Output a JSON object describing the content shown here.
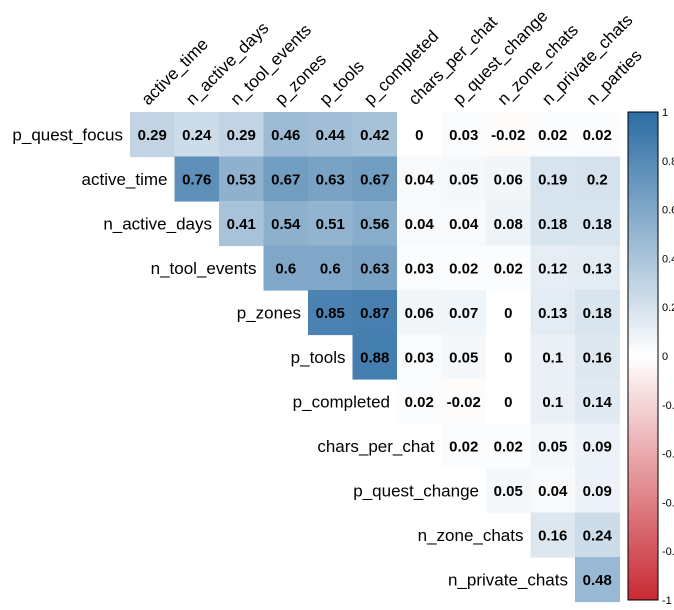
{
  "chart_data": {
    "type": "heatmap",
    "title": "",
    "subtitle": "",
    "columns": [
      "active_time",
      "n_active_days",
      "n_tool_events",
      "p_zones",
      "p_tools",
      "p_completed",
      "chars_per_chat",
      "p_quest_change",
      "n_zone_chats",
      "n_private_chats",
      "n_parties"
    ],
    "rows": [
      "p_quest_focus",
      "active_time",
      "n_active_days",
      "n_tool_events",
      "p_zones",
      "p_tools",
      "p_completed",
      "chars_per_chat",
      "p_quest_change",
      "n_zone_chats",
      "n_private_chats"
    ],
    "values": [
      [
        0.29,
        0.24,
        0.29,
        0.46,
        0.44,
        0.42,
        0,
        0.03,
        -0.02,
        0.02,
        0.02
      ],
      [
        null,
        0.76,
        0.53,
        0.67,
        0.63,
        0.67,
        0.04,
        0.05,
        0.06,
        0.19,
        0.2
      ],
      [
        null,
        null,
        0.41,
        0.54,
        0.51,
        0.56,
        0.04,
        0.04,
        0.08,
        0.18,
        0.18
      ],
      [
        null,
        null,
        null,
        0.6,
        0.6,
        0.63,
        0.03,
        0.02,
        0.02,
        0.12,
        0.13
      ],
      [
        null,
        null,
        null,
        null,
        0.85,
        0.87,
        0.06,
        0.07,
        0,
        0.13,
        0.18
      ],
      [
        null,
        null,
        null,
        null,
        null,
        0.88,
        0.03,
        0.05,
        0,
        0.1,
        0.16
      ],
      [
        null,
        null,
        null,
        null,
        null,
        null,
        0.02,
        -0.02,
        0,
        0.1,
        0.14
      ],
      [
        null,
        null,
        null,
        null,
        null,
        null,
        null,
        0.02,
        0.02,
        0.05,
        0.09
      ],
      [
        null,
        null,
        null,
        null,
        null,
        null,
        null,
        null,
        0.05,
        0.04,
        0.09
      ],
      [
        null,
        null,
        null,
        null,
        null,
        null,
        null,
        null,
        null,
        0.16,
        0.24
      ],
      [
        null,
        null,
        null,
        null,
        null,
        null,
        null,
        null,
        null,
        null,
        0.48
      ]
    ],
    "colorbar": {
      "min": -1,
      "max": 1,
      "ticks": [
        1,
        0.8,
        0.6,
        0.4,
        0.2,
        0,
        -0.2,
        -0.4,
        -0.6,
        -0.8,
        -1
      ],
      "tick_labels": [
        "1",
        "0.8",
        "0.6",
        "0.4",
        "0.2",
        "0",
        "-0.2",
        "-0.4",
        "-0.6",
        "-0.8",
        "-1"
      ]
    },
    "colors": {
      "positive": "#2b6ca3",
      "neutral": "#ffffff",
      "negative": "#c82a33",
      "text": "#000000",
      "colorbar_border": "#000000"
    },
    "legend": "right",
    "grid": false
  }
}
